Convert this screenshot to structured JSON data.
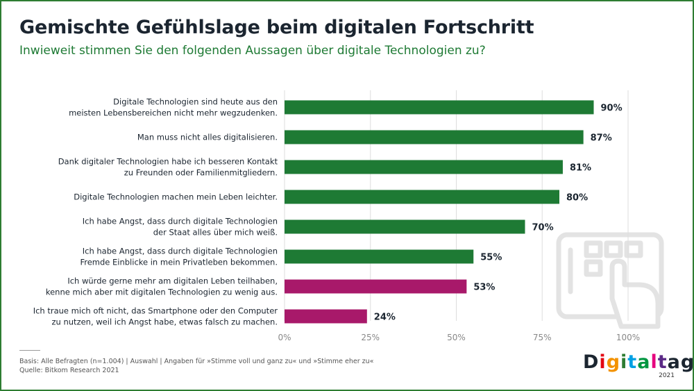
{
  "title": "Gemischte Gefühlslage beim digitalen Fortschritt",
  "subtitle": "Inwieweit stimmen Sie den folgenden Aussagen über digitale Technologien zu?",
  "footer": {
    "basis": "Basis: Alle Befragten (n=1.004) | Auswahl | Angaben für »Stimme voll und ganz zu« und »Stimme eher zu«",
    "source": "Quelle: Bitkom Research 2021"
  },
  "logo": {
    "letters": [
      "D",
      "i",
      "g",
      "i",
      "t",
      "a",
      "l",
      "t",
      "a",
      "g"
    ],
    "letter_colors": [
      "#1b2530",
      "#e30613",
      "#f39200",
      "#2e7d32",
      "#00a0e3",
      "#009640",
      "#e6007e",
      "#5b2a86",
      "#1b2530",
      "#1b2530"
    ],
    "year": "2021"
  },
  "colors": {
    "green": "#1e7a34",
    "magenta": "#a8196a",
    "grid": "#dddddd",
    "axis_text": "#888888"
  },
  "chart_data": {
    "type": "bar",
    "orientation": "horizontal",
    "categories": [
      [
        "Digitale Technologien sind heute aus den",
        "meisten Lebensbereichen nicht mehr wegzudenken."
      ],
      [
        "Man muss nicht alles digitalisieren."
      ],
      [
        "Dank digitaler Technologien habe ich besseren Kontakt",
        "zu Freunden oder Familienmitgliedern."
      ],
      [
        "Digitale Technologien machen mein Leben leichter."
      ],
      [
        "Ich habe Angst, dass durch digitale Technologien",
        "der Staat alles über mich weiß."
      ],
      [
        "Ich habe Angst, dass durch digitale Technologien",
        "Fremde Einblicke in mein Privatleben bekommen."
      ],
      [
        "Ich würde gerne mehr am digitalen Leben teilhaben,",
        "kenne mich aber mit digitalen Technologien zu wenig aus."
      ],
      [
        "Ich traue mich oft nicht, das Smartphone oder den Computer",
        "zu nutzen, weil ich Angst habe, etwas falsch zu machen."
      ]
    ],
    "values": [
      90,
      87,
      81,
      80,
      70,
      55,
      53,
      24
    ],
    "value_labels": [
      "90%",
      "87%",
      "81%",
      "80%",
      "70%",
      "55%",
      "53%",
      "24%"
    ],
    "bar_colors": [
      "green",
      "green",
      "green",
      "green",
      "green",
      "green",
      "magenta",
      "magenta"
    ],
    "xlim": [
      0,
      100
    ],
    "xticks": [
      0,
      25,
      50,
      75,
      100
    ],
    "xtick_labels": [
      "0%",
      "25%",
      "50%",
      "75%",
      "100%"
    ],
    "grid": true
  }
}
